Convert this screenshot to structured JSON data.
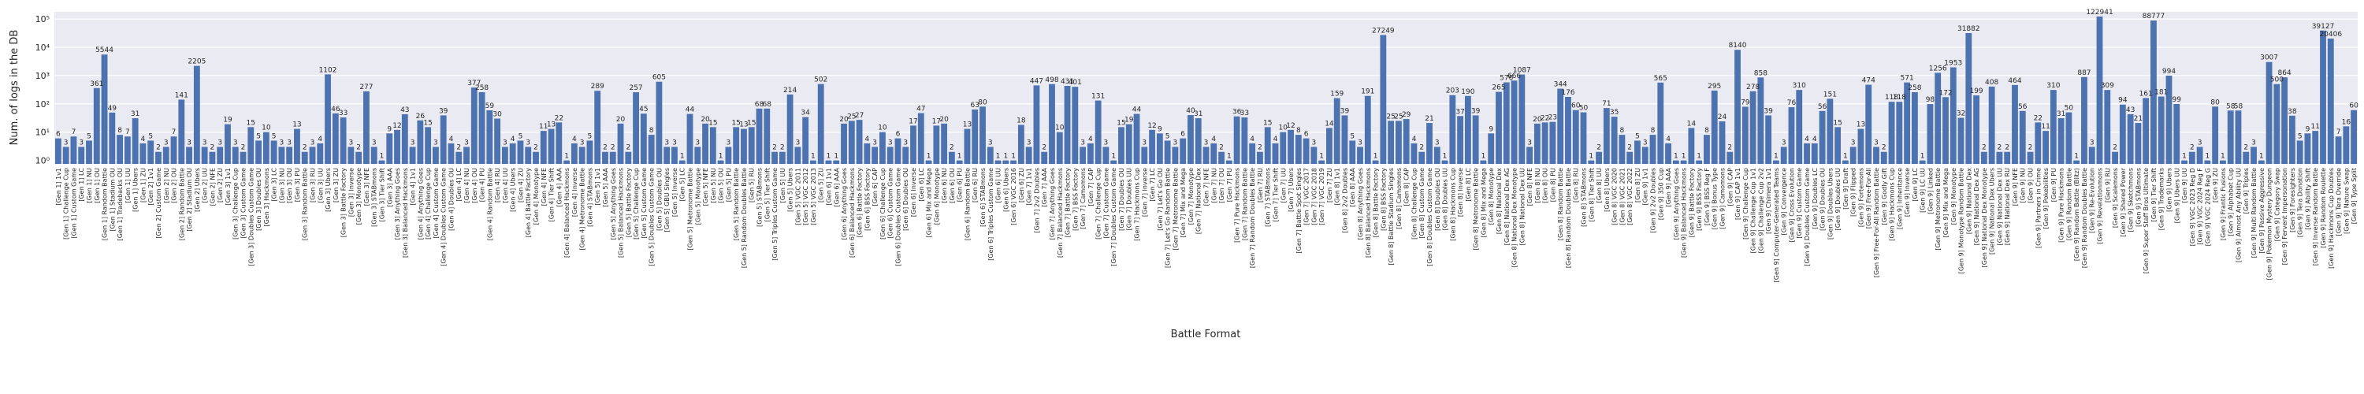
{
  "chart_data": {
    "type": "bar",
    "xlabel": "Battle Format",
    "ylabel": "Num. of logs in the DB",
    "color": "#4c72b0",
    "log_scale": "y",
    "grid": true,
    "ylim": [
      0.75,
      180000
    ],
    "yticks": [
      {
        "value": 1,
        "label": "10⁰"
      },
      {
        "value": 10,
        "label": "10¹"
      },
      {
        "value": 100,
        "label": "10²"
      },
      {
        "value": 1000,
        "label": "10³"
      },
      {
        "value": 10000,
        "label": "10⁴"
      },
      {
        "value": 100000,
        "label": "10⁵"
      }
    ],
    "categories": [
      "[Gen 1] 1v1",
      "[Gen 1] Challenge Cup",
      "[Gen 1] Custom Game",
      "[Gen 1] LC",
      "[Gen 1] NU",
      "[Gen 1] OU",
      "[Gen 1] Random Battle",
      "[Gen 1] Stadium OU",
      "[Gen 1] Tradebacks OU",
      "[Gen 1] UU",
      "[Gen 1] Ubers",
      "[Gen 1] ZU",
      "[Gen 2] 1v1",
      "[Gen 2] Custom Game",
      "[Gen 2] NU",
      "[Gen 2] OU",
      "[Gen 2] Random Battle",
      "[Gen 2] Stadium OU",
      "[Gen 2] Ubers",
      "[Gen 2] UU",
      "[Gen 2] NFE",
      "[Gen 2] ZU",
      "[Gen 3] 1v1",
      "[Gen 3] Challenge Cup",
      "[Gen 3] Custom Game",
      "[Gen 3] Doubles Custom Game",
      "[Gen 3] Doubles OU",
      "[Gen 3] Hackmons",
      "[Gen 3] LC",
      "[Gen 3] NU",
      "[Gen 3] OU",
      "[Gen 3] PU",
      "[Gen 3] Random Battle",
      "[Gen 3] RU",
      "[Gen 3] UU",
      "[Gen 3] Ubers",
      "[Gen 3] ZU",
      "[Gen 3] Battle Factory",
      "[Gen 3] Inverse",
      "[Gen 3] Monotype",
      "[Gen 3] NFE",
      "[Gen 3] STABmons",
      "[Gen 3] Tier Shift",
      "[Gen 3] AAA",
      "[Gen 3] Anything Goes",
      "[Gen 3] Balanced Hackmons",
      "[Gen 4] 1v1",
      "[Gen 4] Anything Goes",
      "[Gen 4] Challenge Cup",
      "[Gen 4] Custom Game",
      "[Gen 4] Doubles Custom Game",
      "[Gen 4] Doubles OU",
      "[Gen 4] LC",
      "[Gen 4] NU",
      "[Gen 4] OU",
      "[Gen 4] PU",
      "[Gen 4] Random Battle",
      "[Gen 4] RU",
      "[Gen 4] UU",
      "[Gen 4] Ubers",
      "[Gen 4] ZU",
      "[Gen 4] Battle Factory",
      "[Gen 4] Monotype",
      "[Gen 4] NFE",
      "[Gen 4] Tier Shift",
      "[Gen 4] AAA",
      "[Gen 4] Balanced Hackmons",
      "[Gen 4] Inverse",
      "[Gen 4] Metronome Battle",
      "[Gen 4] STABmons",
      "[Gen 5] 1v1",
      "[Gen 5] AAA",
      "[Gen 5] Anything Goes",
      "[Gen 5] Balanced Hackmons",
      "[Gen 5] Battle Factory",
      "[Gen 5] Challenge Cup",
      "[Gen 5] Custom Game",
      "[Gen 5] Doubles Custom Game",
      "[Gen 5] Doubles OU",
      "[Gen 5] GBU Singles",
      "[Gen 5] Inverse",
      "[Gen 5] LC",
      "[Gen 5] Metronome Battle",
      "[Gen 5] Monotype",
      "[Gen 5] NFE",
      "[Gen 5] NU",
      "[Gen 5] OU",
      "[Gen 5] PU",
      "[Gen 5] Random Battle",
      "[Gen 5] Random Doubles Battle",
      "[Gen 5] RU",
      "[Gen 5] STABmons",
      "[Gen 5] Tier Shift",
      "[Gen 5] Triples Custom Game",
      "[Gen 5] UU",
      "[Gen 5] Ubers",
      "[Gen 5] VGC 2011",
      "[Gen 5] VGC 2012",
      "[Gen 5] VGC 2013",
      "[Gen 5] ZU",
      "[Gen 6] 1v1",
      "[Gen 6] AAA",
      "[Gen 6] Anything Goes",
      "[Gen 6] Balanced Hackmons",
      "[Gen 6] Battle Factory",
      "[Gen 6] BSS Factory",
      "[Gen 6] CAP",
      "[Gen 6] Challenge Cup",
      "[Gen 6] Custom Game",
      "[Gen 6] Doubles Custom Game",
      "[Gen 6] Doubles OU",
      "[Gen 6] Inverse",
      "[Gen 6] LC",
      "[Gen 6] Mix and Mega",
      "[Gen 6] Monotype",
      "[Gen 6] NU",
      "[Gen 6] OU",
      "[Gen 6] PU",
      "[Gen 6] Random Battle",
      "[Gen 6] RU",
      "[Gen 6] STABmons",
      "[Gen 6] Triples Custom Game",
      "[Gen 6] UU",
      "[Gen 6] Ubers",
      "[Gen 6] VGC 2016",
      "[Gen 6] ZU",
      "[Gen 7] 1v1",
      "[Gen 7] 2v2 Doubles",
      "[Gen 7] AAA",
      "[Gen 7] Anything Goes",
      "[Gen 7] Balanced Hackmons",
      "[Gen 7] Battle Factory",
      "[Gen 7] BSS Factory",
      "[Gen 7] Camomons",
      "[Gen 7] CAP",
      "[Gen 7] Challenge Cup",
      "[Gen 7] Custom Game",
      "[Gen 7] Doubles Custom Game",
      "[Gen 7] Doubles OU",
      "[Gen 7] Doubles UU",
      "[Gen 7] Hackmons Cup",
      "[Gen 7] Inverse",
      "[Gen 7] LC",
      "[Gen 7] Let's Go OU",
      "[Gen 7] Let's Go Random Battle",
      "[Gen 7] Metronome Battle",
      "[Gen 7] Mix and Mega",
      "[Gen 7] Monotype",
      "[Gen 7] National Dex",
      "[Gen 7] NFE",
      "[Gen 7] NU",
      "[Gen 7] OU",
      "[Gen 7] PU",
      "[Gen 7] Pure Hackmons",
      "[Gen 7] Random Battle",
      "[Gen 7] Random Doubles Battle",
      "[Gen 7] RU",
      "[Gen 7] STABmons",
      "[Gen 7] Tier Shift",
      "[Gen 7] UU",
      "[Gen 7] Ubers",
      "[Gen 7] Battle Spot Singles",
      "[Gen 7] VGC 2017",
      "[Gen 7] VGC 2018",
      "[Gen 7] VGC 2019",
      "[Gen 7] ZU",
      "[Gen 8] 1v1",
      "[Gen 8] 2v2 Doubles",
      "[Gen 8] AAA",
      "[Gen 8] Anything Goes",
      "[Gen 8] Balanced Hackmons",
      "[Gen 8] Battle Factory",
      "[Gen 8] BSS Factory",
      "[Gen 8] Battle Stadium Singles",
      "[Gen 8] Camomons",
      "[Gen 8] CAP",
      "[Gen 8] Challenge Cup",
      "[Gen 8] Custom Game",
      "[Gen 8] Doubles Custom Game",
      "[Gen 8] Doubles OU",
      "[Gen 8] Doubles UU",
      "[Gen 8] Hackmons Cup",
      "[Gen 8] Inverse",
      "[Gen 8] LC",
      "[Gen 8] Metronome Battle",
      "[Gen 8] Mix and Mega",
      "[Gen 8] Monotype",
      "[Gen 8] National Dex",
      "[Gen 8] National Dex AG",
      "[Gen 8] National Dex Monotype",
      "[Gen 8] National Dex UU",
      "[Gen 8] NFE",
      "[Gen 8] NU",
      "[Gen 8] OU",
      "[Gen 8] PU",
      "[Gen 8] Random Battle",
      "[Gen 8] Random Doubles Battle",
      "[Gen 8] RU",
      "[Gen 8] STABmons",
      "[Gen 8] Tier Shift",
      "[Gen 8] UU",
      "[Gen 8] Ubers",
      "[Gen 8] VGC 2020",
      "[Gen 8] VGC 2021",
      "[Gen 8] VGC 2022",
      "[Gen 8] ZU",
      "[Gen 9] 1v1",
      "[Gen 9] 2v2 Doubles",
      "[Gen 9] 350 Cup",
      "[Gen 9] AAA",
      "[Gen 9] Anything Goes",
      "[Gen 9] Balanced Hackmons",
      "[Gen 9] Battle Factory",
      "[Gen 9] BSS Factory",
      "[Gen 9] BSS Reg F",
      "[Gen 9] Bonus Type",
      "[Gen 9] Camomons",
      "[Gen 9] CAP",
      "[Gen 9] CAP 1v1",
      "[Gen 9] Challenge Cup",
      "[Gen 9] Challenge Cup 1v1",
      "[Gen 9] Challenge Cup 2v2",
      "[Gen 9] Chimera 1v1",
      "[Gen 9] Computer-Generated Teams",
      "[Gen 9] Convergence",
      "[Gen 9] Cross Evolution",
      "[Gen 9] Custom Game",
      "[Gen 9] Doubles Custom Game",
      "[Gen 9] Doubles LC",
      "[Gen 9] Doubles OU",
      "[Gen 9] Doubles Ubers",
      "[Gen 9] Doubles UU",
      "[Gen 9] Draft",
      "[Gen 9] Flipped",
      "[Gen 9] Fortemons",
      "[Gen 9] Free-For-All",
      "[Gen 9] Free-For-All Random Battle",
      "[Gen 9] Godly Gift",
      "[Gen 9] Hackmons Cup",
      "[Gen 9] Inheritance",
      "[Gen 9] Inverse",
      "[Gen 9] LC",
      "[Gen 9] LC UU",
      "[Gen 9] Linked",
      "[Gen 9] Metronome Battle",
      "[Gen 9] Mix and Mega",
      "[Gen 9] Monotype",
      "[Gen 9] Monotype Random Battle",
      "[Gen 9] National Dex",
      "[Gen 9] National Dex AG",
      "[Gen 9] National Dex Monotype",
      "[Gen 9] National Dex Ubers",
      "[Gen 9] National Dex UU",
      "[Gen 9] National Dex RU",
      "[Gen 9] NFE",
      "[Gen 9] NU",
      "[Gen 9] OU",
      "[Gen 9] Partners in Crime",
      "[Gen 9] Pokebilities",
      "[Gen 9] PU",
      "[Gen 9] Pure Hackmons",
      "[Gen 9] Random Battle",
      "[Gen 9] Random Battle (Blitz)",
      "[Gen 9] Random Doubles Battle",
      "[Gen 9] Re-Evolution",
      "[Gen 9] Revelationmons",
      "[Gen 9] RU",
      "[Gen 9] Scalemons",
      "[Gen 9] Shared Power",
      "[Gen 9] Sketchmons",
      "[Gen 9] STABmons",
      "[Gen 9] Super Staff Bros Ultimate",
      "[Gen 9] Tier Shift",
      "[Gen 9] Trademarks",
      "[Gen 9] Ubers",
      "[Gen 9] Ubers UU",
      "[Gen 9] UU",
      "[Gen 9] VGC 2023 Reg D",
      "[Gen 9] VGC 2024 Reg F",
      "[Gen 9] VGC 2024 Reg G",
      "[Gen 9] ZU",
      "[Gen 9] Frantic Fusions",
      "[Gen 9] Alphabet Cup",
      "[Gen 9] Almost Any Ability UU",
      "[Gen 9] Triples",
      "[Gen 9] Multi Random Battle",
      "[Gen 9] Passive Aggressive",
      "[Gen 9] Pokemon Mystery Dungeon",
      "[Gen 9] Category Swap",
      "[Gen 9] Fervent Impersonation",
      "[Gen 9] Foresighters",
      "[Gen 9] Tera Donation",
      "[Gen 9] Ability Shift",
      "[Gen 9] Inverse Random Battle",
      "[Gen 9] Random Roulette",
      "[Gen 9] Hackmons Cup Doubles",
      "[Gen 9] Tera Override",
      "[Gen 9] Nature Swap",
      "[Gen 9] Type Split"
    ],
    "values": [
      6,
      3,
      7,
      3,
      5,
      361,
      5544,
      49,
      8,
      7,
      31,
      4,
      5,
      2,
      3,
      7,
      141,
      3,
      2205,
      3,
      2,
      3,
      19,
      3,
      2,
      15,
      5,
      10,
      5,
      3,
      3,
      13,
      2,
      3,
      4,
      1102,
      46,
      33,
      3,
      2,
      277,
      3,
      1,
      9,
      12,
      43,
      3,
      26,
      15,
      3,
      39,
      4,
      2,
      3,
      377,
      258,
      59,
      30,
      3,
      4,
      5,
      3,
      2,
      11,
      13,
      22,
      1,
      4,
      3,
      5,
      289,
      2,
      2,
      20,
      2,
      257,
      45,
      8,
      605,
      3,
      3,
      1,
      44,
      3,
      20,
      15,
      1,
      3,
      15,
      13,
      15,
      68,
      68,
      2,
      2,
      214,
      3,
      34,
      1,
      502,
      1,
      1,
      20,
      25,
      27,
      4,
      3,
      10,
      3,
      6,
      3,
      17,
      47,
      1,
      17,
      20,
      2,
      1,
      13,
      63,
      80,
      3,
      1,
      1,
      1,
      18,
      3,
      447,
      2,
      498,
      10,
      431,
      401,
      3,
      4,
      131,
      3,
      1,
      15,
      19,
      44,
      3,
      12,
      9,
      5,
      3,
      6,
      40,
      31,
      3,
      4,
      2,
      1,
      36,
      33,
      4,
      2,
      15,
      4,
      10,
      12,
      8,
      6,
      3,
      1,
      14,
      159,
      39,
      5,
      3,
      191,
      1,
      27249,
      25,
      25,
      29,
      4,
      2,
      21,
      3,
      1,
      203,
      37,
      190,
      39,
      1,
      9,
      265,
      576,
      666,
      1087,
      3,
      20,
      22,
      23,
      344,
      176,
      60,
      50,
      1,
      2,
      71,
      35,
      8,
      2,
      5,
      3,
      8,
      565,
      4,
      1,
      1,
      14,
      1,
      8,
      295,
      24,
      2,
      8140,
      79,
      278,
      858,
      39,
      1,
      3,
      76,
      310,
      4,
      4,
      56,
      151,
      15,
      1,
      3,
      13,
      474,
      3,
      2,
      118,
      118,
      571,
      258,
      1,
      98,
      1256,
      172,
      1953,
      32,
      31882,
      199,
      2,
      408,
      2,
      2,
      464,
      56,
      2,
      22,
      11,
      310,
      31,
      50,
      1,
      887,
      3,
      122941,
      309,
      2,
      94,
      43,
      21,
      161,
      88777,
      181,
      994,
      99,
      1,
      2,
      3,
      1,
      80,
      1,
      58,
      58,
      2,
      3,
      1,
      3007,
      500,
      864,
      38,
      5,
      9,
      11,
      39127,
      20406,
      7,
      16,
      60
    ]
  }
}
